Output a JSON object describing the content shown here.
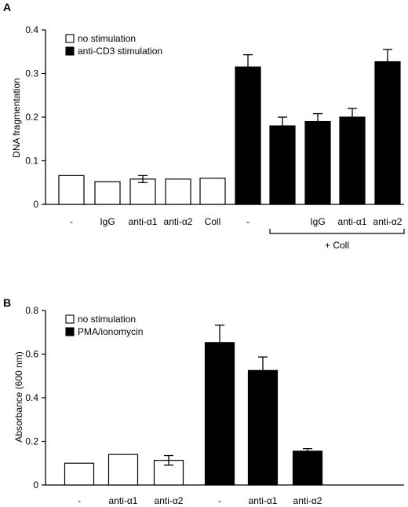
{
  "chart_data": [
    {
      "panel": "A",
      "type": "bar",
      "ylabel": "DNA fragmentation",
      "ylim": [
        0,
        0.4
      ],
      "yticks": [
        "0",
        "0.1",
        "0.2",
        "0.3",
        "0.4"
      ],
      "categories": [
        "-",
        "IgG",
        "anti-α1",
        "anti-α2",
        "Coll",
        "-",
        "",
        "IgG",
        "anti-α1",
        "anti-α2"
      ],
      "group_label": "+ Coll",
      "legend_position": "top-left",
      "series": [
        {
          "name": "no stimulation",
          "color": "#ffffff",
          "values": [
            0.066,
            0.052,
            0.058,
            0.058,
            0.06,
            null,
            null,
            null,
            null,
            null
          ],
          "errors": [
            0,
            0,
            0.008,
            0,
            0,
            null,
            null,
            null,
            null,
            null
          ]
        },
        {
          "name": "anti-CD3 stimulation",
          "color": "#000000",
          "values": [
            null,
            null,
            null,
            null,
            null,
            0.315,
            0.18,
            0.19,
            0.2,
            0.327
          ],
          "errors": [
            null,
            null,
            null,
            null,
            null,
            0.028,
            0.02,
            0.018,
            0.02,
            0.028
          ]
        }
      ]
    },
    {
      "panel": "B",
      "type": "bar",
      "ylabel": "Absorbance (600 nm)",
      "ylim": [
        0,
        0.8
      ],
      "yticks": [
        "0",
        "0.2",
        "0.4",
        "0.6",
        "0.8"
      ],
      "categories": [
        "-",
        "anti-α1",
        "anti-α2",
        "-",
        "anti-α1",
        "anti-α2"
      ],
      "legend_position": "top-left",
      "series": [
        {
          "name": "no stimulation",
          "color": "#ffffff",
          "values": [
            0.1,
            0.14,
            0.113,
            null,
            null,
            null
          ],
          "errors": [
            0,
            0,
            0.022,
            null,
            null,
            null
          ]
        },
        {
          "name": "PMA/ionomycin",
          "color": "#000000",
          "values": [
            null,
            null,
            null,
            0.653,
            0.525,
            0.155
          ],
          "errors": [
            null,
            null,
            null,
            0.08,
            0.062,
            0.012
          ]
        }
      ]
    }
  ]
}
